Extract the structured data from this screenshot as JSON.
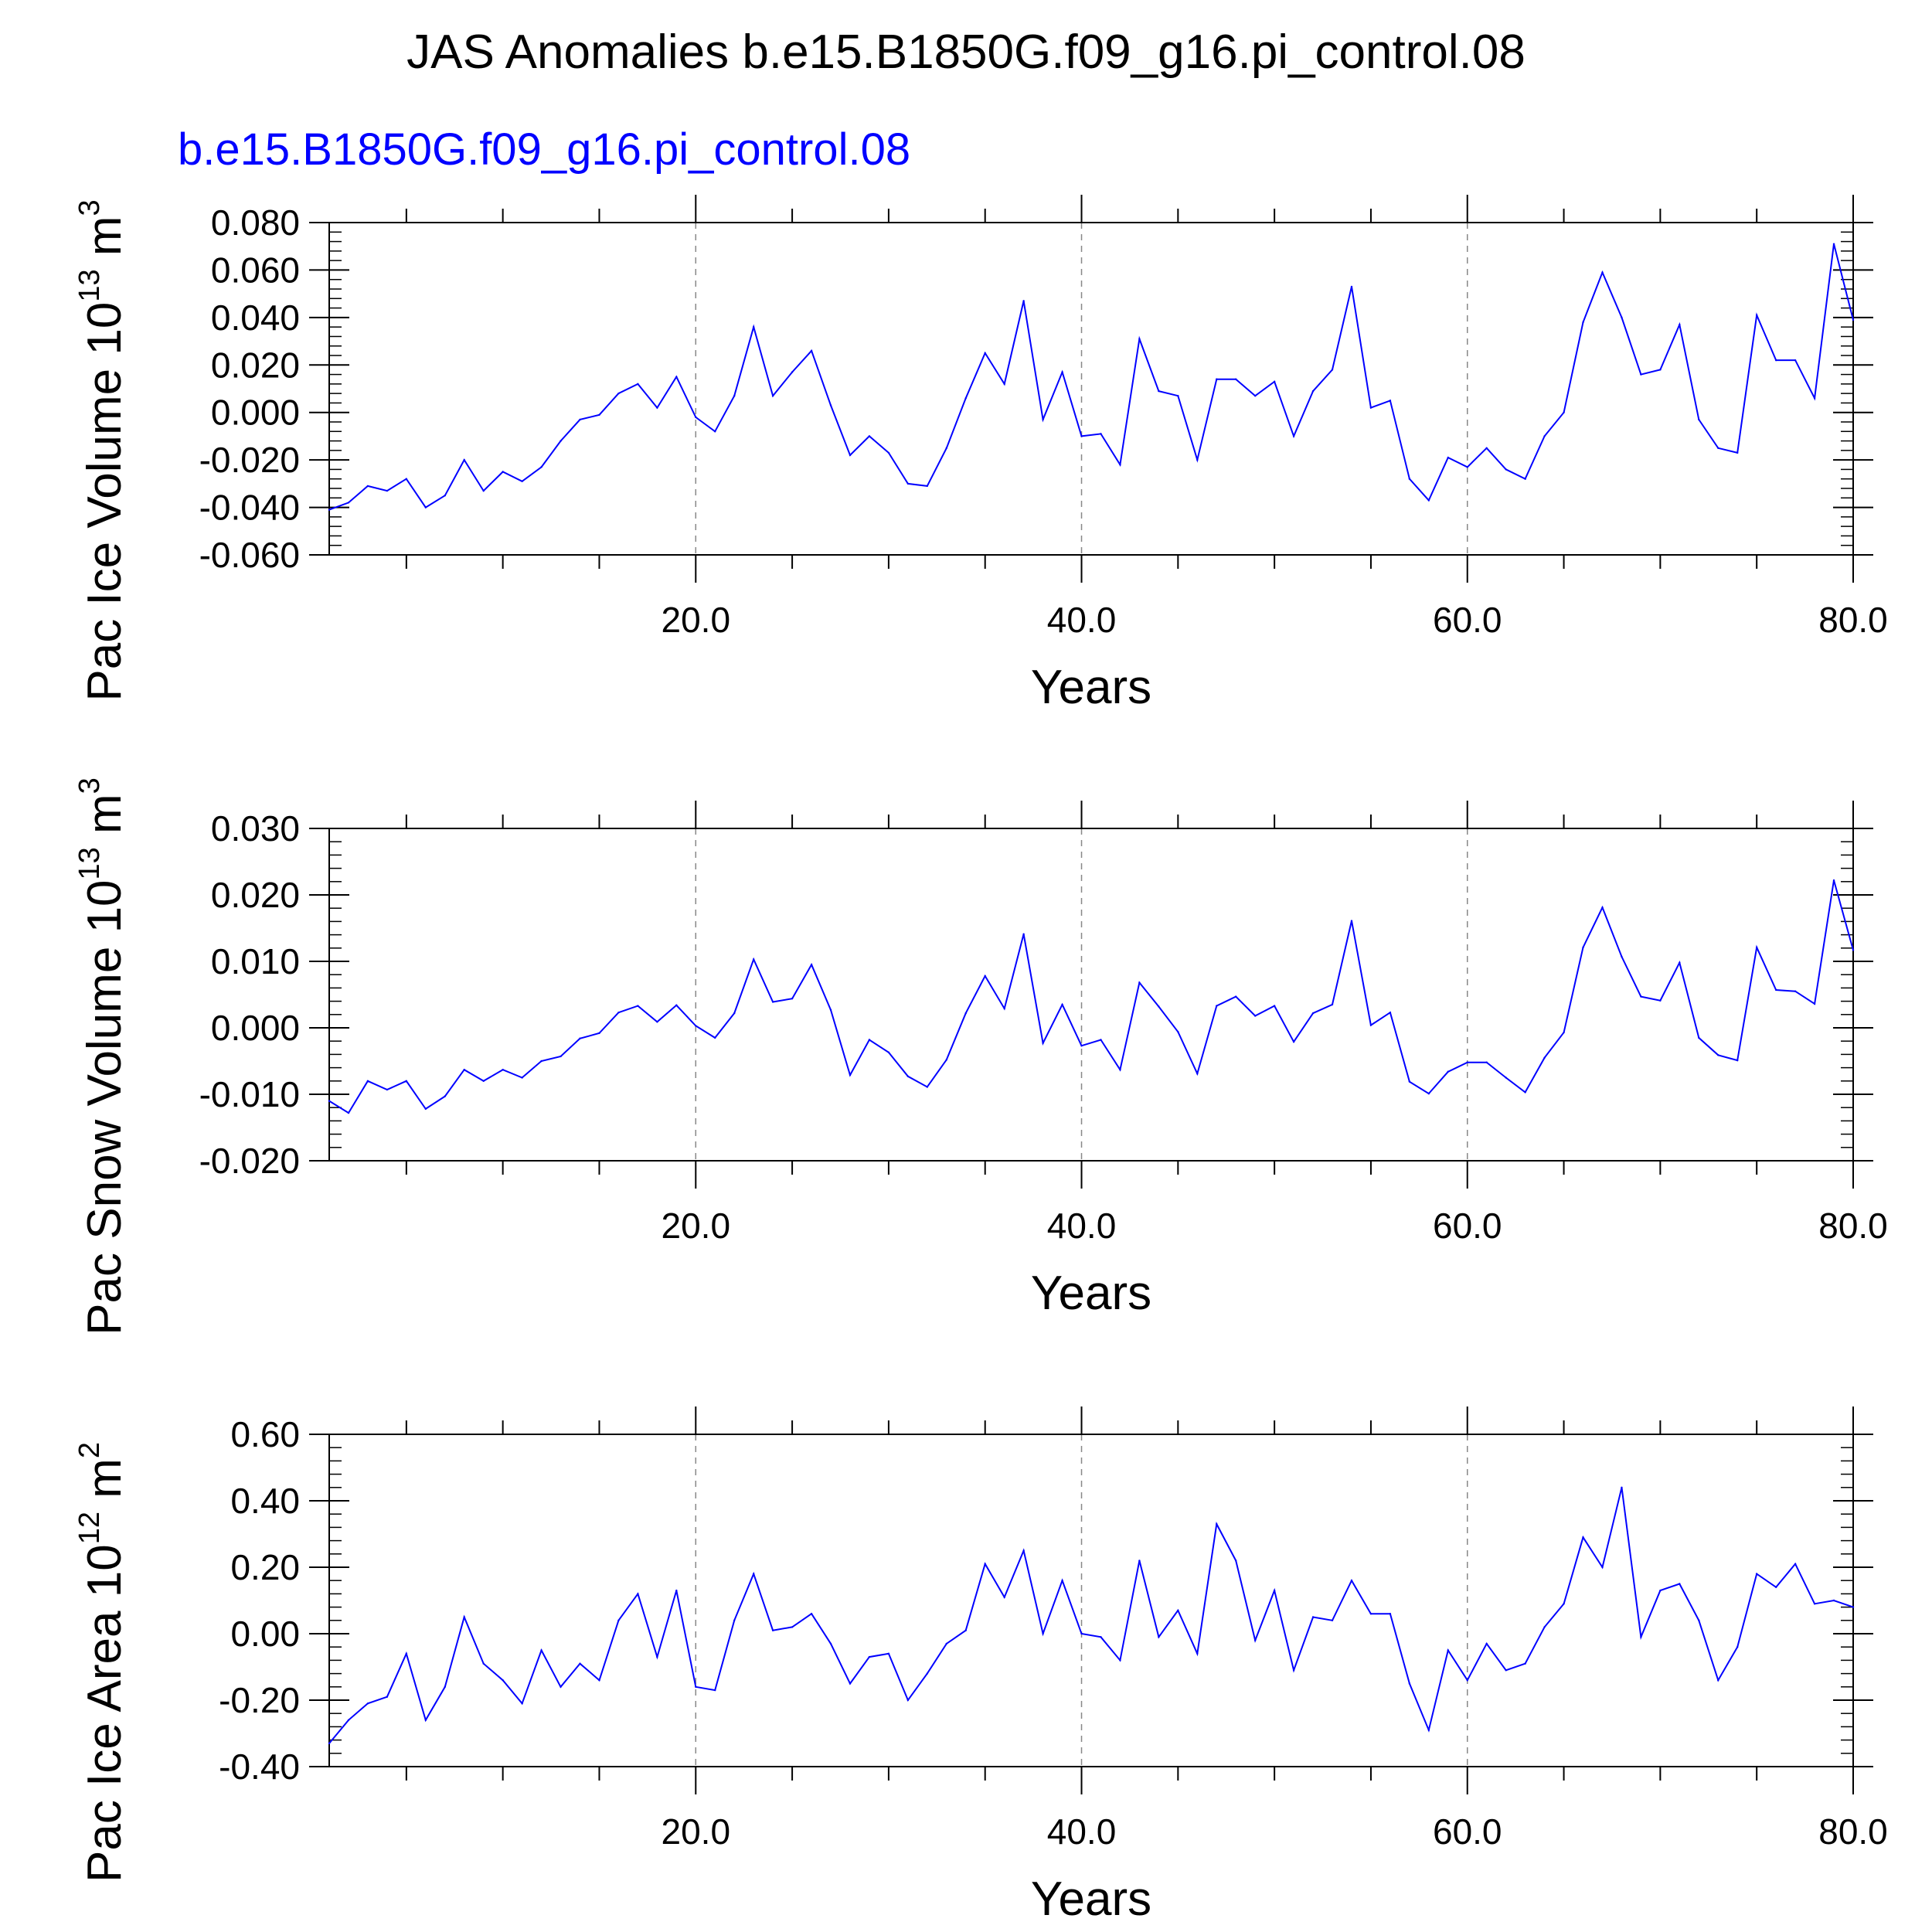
{
  "figure": {
    "title": "JAS Anomalies b.e15.B1850G.f09_g16.pi_control.08",
    "case_label": "b.e15.B1850G.f09_g16.pi_control.08",
    "colors": {
      "series": "#0000ff",
      "axis": "#000000",
      "grid": "#888888",
      "case_label": "#0000ff"
    }
  },
  "chart_data": [
    {
      "type": "line",
      "title": "",
      "xlabel": "Years",
      "ylabel": {
        "main": "Pac Ice Volume 10",
        "sup": "13",
        "unit": " m",
        "unitsup": "3"
      },
      "xlim": [
        1,
        80
      ],
      "ylim": [
        -0.06,
        0.08
      ],
      "xticks": [
        20,
        40,
        60,
        80
      ],
      "xticklabels": [
        "20.0",
        "40.0",
        "60.0",
        "80.0"
      ],
      "yticks": [
        -0.06,
        -0.04,
        -0.02,
        0.0,
        0.02,
        0.04,
        0.06,
        0.08
      ],
      "yticklabels": [
        "-0.060",
        "-0.040",
        "-0.020",
        "0.000",
        "0.020",
        "0.040",
        "0.060",
        "0.080"
      ],
      "series": [
        {
          "name": "b.e15.B1850G.f09_g16.pi_control.08",
          "x": [
            1,
            2,
            3,
            4,
            5,
            6,
            7,
            8,
            9,
            10,
            11,
            12,
            13,
            14,
            15,
            16,
            17,
            18,
            19,
            20,
            21,
            22,
            23,
            24,
            25,
            26,
            27,
            28,
            29,
            30,
            31,
            32,
            33,
            34,
            35,
            36,
            37,
            38,
            39,
            40,
            41,
            42,
            43,
            44,
            45,
            46,
            47,
            48,
            49,
            50,
            51,
            52,
            53,
            54,
            55,
            56,
            57,
            58,
            59,
            60,
            61,
            62,
            63,
            64,
            65,
            66,
            67,
            68,
            69,
            70,
            71,
            72,
            73,
            74,
            75,
            76,
            77,
            78,
            79,
            80
          ],
          "values": [
            -0.041,
            -0.038,
            -0.031,
            -0.033,
            -0.028,
            -0.04,
            -0.035,
            -0.02,
            -0.033,
            -0.025,
            -0.029,
            -0.023,
            -0.012,
            -0.003,
            -0.001,
            0.008,
            0.012,
            0.002,
            0.015,
            -0.002,
            -0.008,
            0.007,
            0.036,
            0.007,
            0.017,
            0.026,
            0.003,
            -0.018,
            -0.01,
            -0.017,
            -0.03,
            -0.031,
            -0.015,
            0.006,
            0.025,
            0.012,
            0.047,
            -0.003,
            0.017,
            -0.01,
            -0.009,
            -0.022,
            0.031,
            0.009,
            0.007,
            -0.02,
            0.014,
            0.014,
            0.007,
            0.013,
            -0.01,
            0.009,
            0.018,
            0.053,
            0.002,
            0.005,
            -0.028,
            -0.037,
            -0.019,
            -0.023,
            -0.015,
            -0.024,
            -0.028,
            -0.01,
            0.0,
            0.038,
            0.059,
            0.04,
            0.016,
            0.018,
            0.037,
            -0.003,
            -0.015,
            -0.017,
            0.041,
            0.022,
            0.022,
            0.006,
            0.071,
            0.039
          ]
        }
      ]
    },
    {
      "type": "line",
      "title": "",
      "xlabel": "Years",
      "ylabel": {
        "main": "Pac Snow Volume 10",
        "sup": "13",
        "unit": " m",
        "unitsup": "3"
      },
      "xlim": [
        1,
        80
      ],
      "ylim": [
        -0.02,
        0.03
      ],
      "xticks": [
        20,
        40,
        60,
        80
      ],
      "xticklabels": [
        "20.0",
        "40.0",
        "60.0",
        "80.0"
      ],
      "yticks": [
        -0.02,
        -0.01,
        0.0,
        0.01,
        0.02,
        0.03
      ],
      "yticklabels": [
        "-0.020",
        "-0.010",
        "0.000",
        "0.010",
        "0.020",
        "0.030"
      ],
      "series": [
        {
          "name": "b.e15.B1850G.f09_g16.pi_control.08",
          "x": [
            1,
            2,
            3,
            4,
            5,
            6,
            7,
            8,
            9,
            10,
            11,
            12,
            13,
            14,
            15,
            16,
            17,
            18,
            19,
            20,
            21,
            22,
            23,
            24,
            25,
            26,
            27,
            28,
            29,
            30,
            31,
            32,
            33,
            34,
            35,
            36,
            37,
            38,
            39,
            40,
            41,
            42,
            43,
            44,
            45,
            46,
            47,
            48,
            49,
            50,
            51,
            52,
            53,
            54,
            55,
            56,
            57,
            58,
            59,
            60,
            61,
            62,
            63,
            64,
            65,
            66,
            67,
            68,
            69,
            70,
            71,
            72,
            73,
            74,
            75,
            76,
            77,
            78,
            79,
            80
          ],
          "values": [
            -0.011,
            -0.0128,
            -0.008,
            -0.0093,
            -0.008,
            -0.0122,
            -0.0103,
            -0.0063,
            -0.008,
            -0.0063,
            -0.0075,
            -0.005,
            -0.0043,
            -0.0016,
            -0.0008,
            0.0023,
            0.0033,
            0.0009,
            0.0034,
            0.0003,
            -0.0015,
            0.0022,
            0.0103,
            0.0039,
            0.0044,
            0.0095,
            0.0027,
            -0.0071,
            -0.0018,
            -0.0037,
            -0.0073,
            -0.0089,
            -0.0048,
            0.0022,
            0.0078,
            0.0029,
            0.0141,
            -0.0023,
            0.0035,
            -0.0027,
            -0.0018,
            -0.0063,
            0.0068,
            0.0032,
            -0.0006,
            -0.0069,
            0.0033,
            0.0047,
            0.0018,
            0.0033,
            -0.0021,
            0.0022,
            0.0035,
            0.0161,
            0.0004,
            0.0023,
            -0.0081,
            -0.0099,
            -0.0066,
            -0.0052,
            -0.0052,
            -0.0075,
            -0.0097,
            -0.0045,
            -0.0007,
            0.0121,
            0.0181,
            0.0107,
            0.0047,
            0.0041,
            0.0098,
            -0.0015,
            -0.0041,
            -0.0049,
            0.0121,
            0.0057,
            0.0055,
            0.0036,
            0.0222,
            0.0117
          ]
        }
      ]
    },
    {
      "type": "line",
      "title": "",
      "xlabel": "Years",
      "ylabel": {
        "main": "Pac Ice Area 10",
        "sup": "12",
        "unit": " m",
        "unitsup": "2"
      },
      "xlim": [
        1,
        80
      ],
      "ylim": [
        -0.4,
        0.6
      ],
      "xticks": [
        20,
        40,
        60,
        80
      ],
      "xticklabels": [
        "20.0",
        "40.0",
        "60.0",
        "80.0"
      ],
      "yticks": [
        -0.4,
        -0.2,
        0.0,
        0.2,
        0.4,
        0.6
      ],
      "yticklabels": [
        "-0.40",
        "-0.20",
        "0.00",
        "0.20",
        "0.40",
        "0.60"
      ],
      "series": [
        {
          "name": "b.e15.B1850G.f09_g16.pi_control.08",
          "x": [
            1,
            2,
            3,
            4,
            5,
            6,
            7,
            8,
            9,
            10,
            11,
            12,
            13,
            14,
            15,
            16,
            17,
            18,
            19,
            20,
            21,
            22,
            23,
            24,
            25,
            26,
            27,
            28,
            29,
            30,
            31,
            32,
            33,
            34,
            35,
            36,
            37,
            38,
            39,
            40,
            41,
            42,
            43,
            44,
            45,
            46,
            47,
            48,
            49,
            50,
            51,
            52,
            53,
            54,
            55,
            56,
            57,
            58,
            59,
            60,
            61,
            62,
            63,
            64,
            65,
            66,
            67,
            68,
            69,
            70,
            71,
            72,
            73,
            74,
            75,
            76,
            77,
            78,
            79,
            80
          ],
          "values": [
            -0.33,
            -0.26,
            -0.21,
            -0.19,
            -0.06,
            -0.26,
            -0.16,
            0.05,
            -0.09,
            -0.14,
            -0.21,
            -0.05,
            -0.16,
            -0.09,
            -0.14,
            0.04,
            0.12,
            -0.07,
            0.13,
            -0.16,
            -0.17,
            0.04,
            0.18,
            0.01,
            0.02,
            0.06,
            -0.03,
            -0.15,
            -0.07,
            -0.06,
            -0.2,
            -0.12,
            -0.03,
            0.01,
            0.21,
            0.11,
            0.25,
            0.0,
            0.16,
            0.0,
            -0.01,
            -0.08,
            0.22,
            -0.01,
            0.07,
            -0.06,
            0.33,
            0.22,
            -0.02,
            0.13,
            -0.11,
            0.05,
            0.04,
            0.16,
            0.06,
            0.06,
            -0.15,
            -0.29,
            -0.05,
            -0.14,
            -0.03,
            -0.11,
            -0.09,
            0.02,
            0.09,
            0.29,
            0.2,
            0.44,
            -0.01,
            0.13,
            0.15,
            0.04,
            -0.14,
            -0.04,
            0.18,
            0.14,
            0.21,
            0.09,
            0.1,
            0.08
          ]
        }
      ]
    }
  ]
}
